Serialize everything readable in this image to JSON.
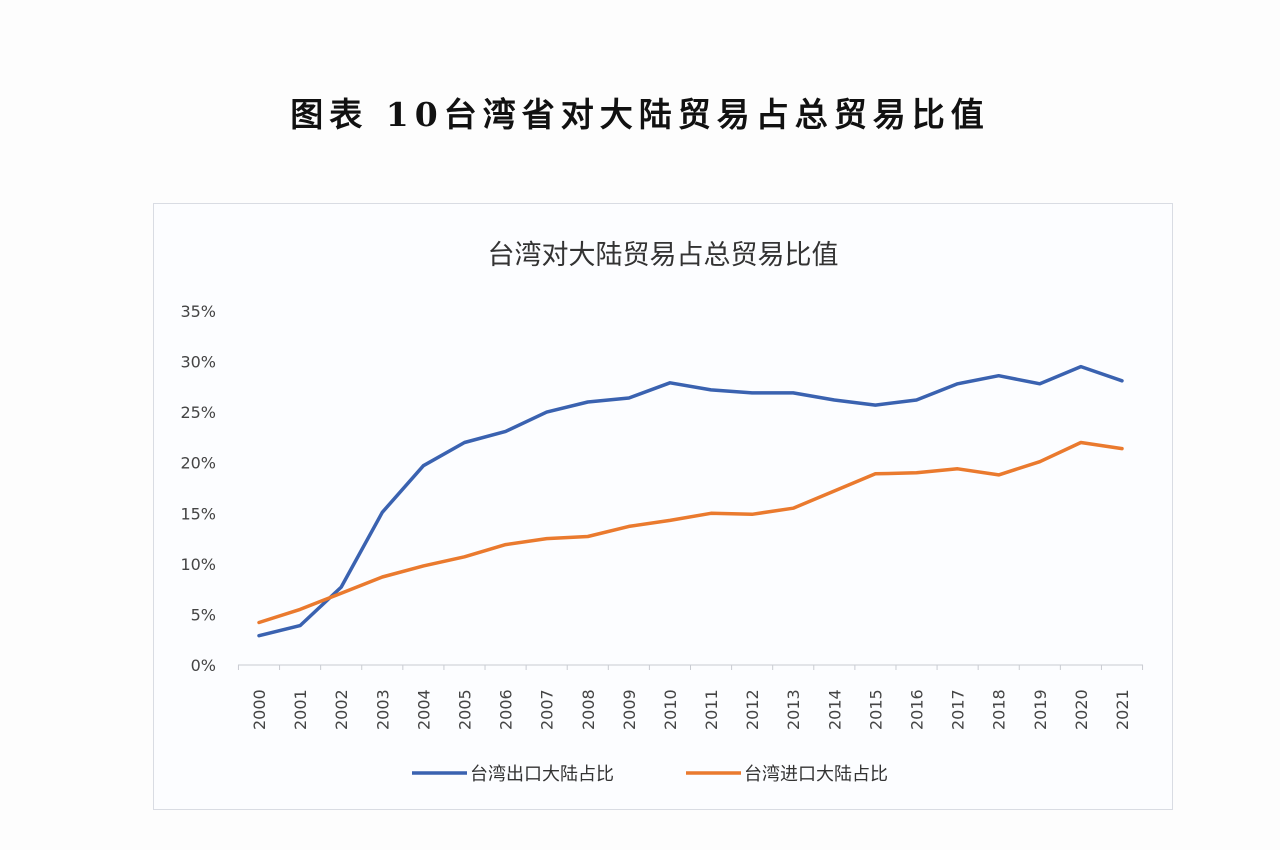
{
  "page_title": "图表 10台湾省对大陆贸易占总贸易比值",
  "chart_data": {
    "type": "line",
    "title": "台湾对大陆贸易占总贸易比值",
    "xlabel": "",
    "ylabel": "",
    "categories": [
      "2000",
      "2001",
      "2002",
      "2003",
      "2004",
      "2005",
      "2006",
      "2007",
      "2008",
      "2009",
      "2010",
      "2011",
      "2012",
      "2013",
      "2014",
      "2015",
      "2016",
      "2017",
      "2018",
      "2019",
      "2020",
      "2021"
    ],
    "ylim": [
      0,
      35
    ],
    "y_ticks": [
      "0%",
      "5%",
      "10%",
      "15%",
      "20%",
      "25%",
      "30%",
      "35%"
    ],
    "grid": false,
    "legend_position": "bottom",
    "series": [
      {
        "name": "台湾出口大陆占比",
        "color": "#3a62b0",
        "values": [
          2.9,
          3.9,
          7.7,
          15.1,
          19.7,
          22.0,
          23.1,
          25.0,
          26.0,
          26.4,
          27.9,
          27.2,
          26.9,
          26.9,
          26.2,
          25.7,
          26.2,
          27.8,
          28.6,
          27.8,
          29.5,
          28.1
        ]
      },
      {
        "name": "台湾进口大陆占比",
        "color": "#ea7a2e",
        "values": [
          4.2,
          5.5,
          7.1,
          8.7,
          9.8,
          10.7,
          11.9,
          12.5,
          12.7,
          13.7,
          14.3,
          15.0,
          14.9,
          15.5,
          17.2,
          18.9,
          19.0,
          19.4,
          18.8,
          20.1,
          22.0,
          21.4
        ]
      }
    ]
  }
}
